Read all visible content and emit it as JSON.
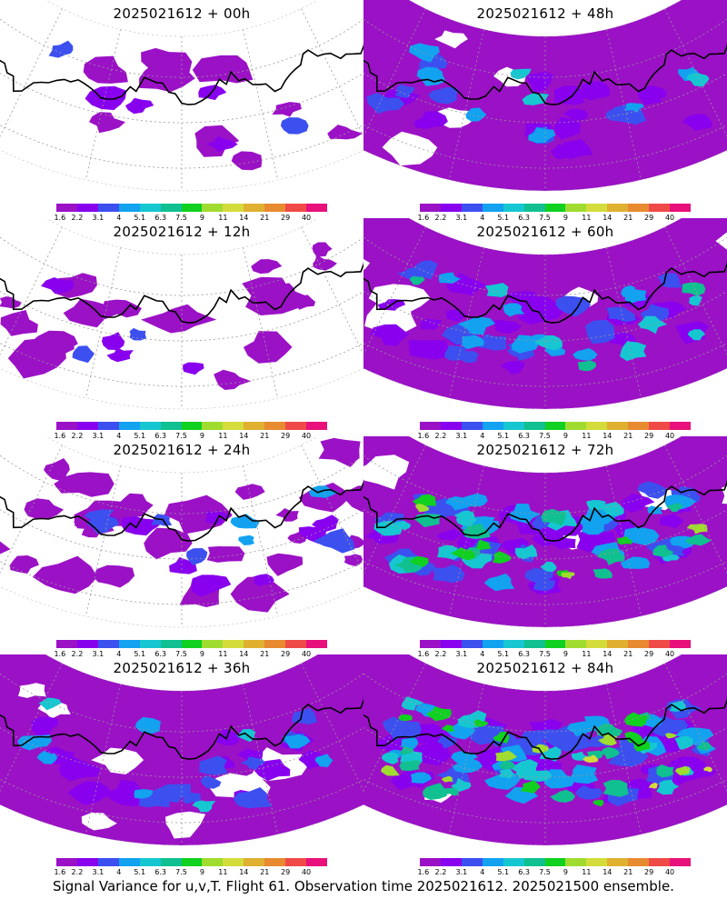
{
  "chart_data": {
    "type": "heatmap",
    "description_quantity": "Signal Variance for u,v,T",
    "caption": "Signal Variance for u,v,T. Flight 61. Observation time 2025021612. 2025021500 ensemble.",
    "colorbar": {
      "levels": [
        "1.6",
        "2.2",
        "3.1",
        "4",
        "5.1",
        "6.3",
        "7.5",
        "9",
        "11",
        "14",
        "21",
        "29",
        "40"
      ],
      "colors": [
        "#9b11c6",
        "#8800ee",
        "#3c50f0",
        "#12a2f0",
        "#16c7d2",
        "#10c090",
        "#10d020",
        "#a0dc30",
        "#d4dc3c",
        "#e0b030",
        "#e88a30",
        "#ef4a48",
        "#e8107a"
      ]
    },
    "panels": [
      {
        "title": "2025021612 + 00h",
        "lead_hours": 0,
        "coverage": 0.15,
        "intensity": 0.1
      },
      {
        "title": "2025021612 + 48h",
        "lead_hours": 48,
        "coverage": 0.82,
        "intensity": 0.35
      },
      {
        "title": "2025021612 + 12h",
        "lead_hours": 12,
        "coverage": 0.35,
        "intensity": 0.18
      },
      {
        "title": "2025021612 + 60h",
        "lead_hours": 60,
        "coverage": 0.85,
        "intensity": 0.45
      },
      {
        "title": "2025021612 + 24h",
        "lead_hours": 24,
        "coverage": 0.55,
        "intensity": 0.25
      },
      {
        "title": "2025021612 + 72h",
        "lead_hours": 72,
        "coverage": 0.88,
        "intensity": 0.55
      },
      {
        "title": "2025021612 + 36h",
        "lead_hours": 36,
        "coverage": 0.7,
        "intensity": 0.3
      },
      {
        "title": "2025021612 + 84h",
        "lead_hours": 84,
        "coverage": 0.92,
        "intensity": 0.65
      }
    ]
  }
}
